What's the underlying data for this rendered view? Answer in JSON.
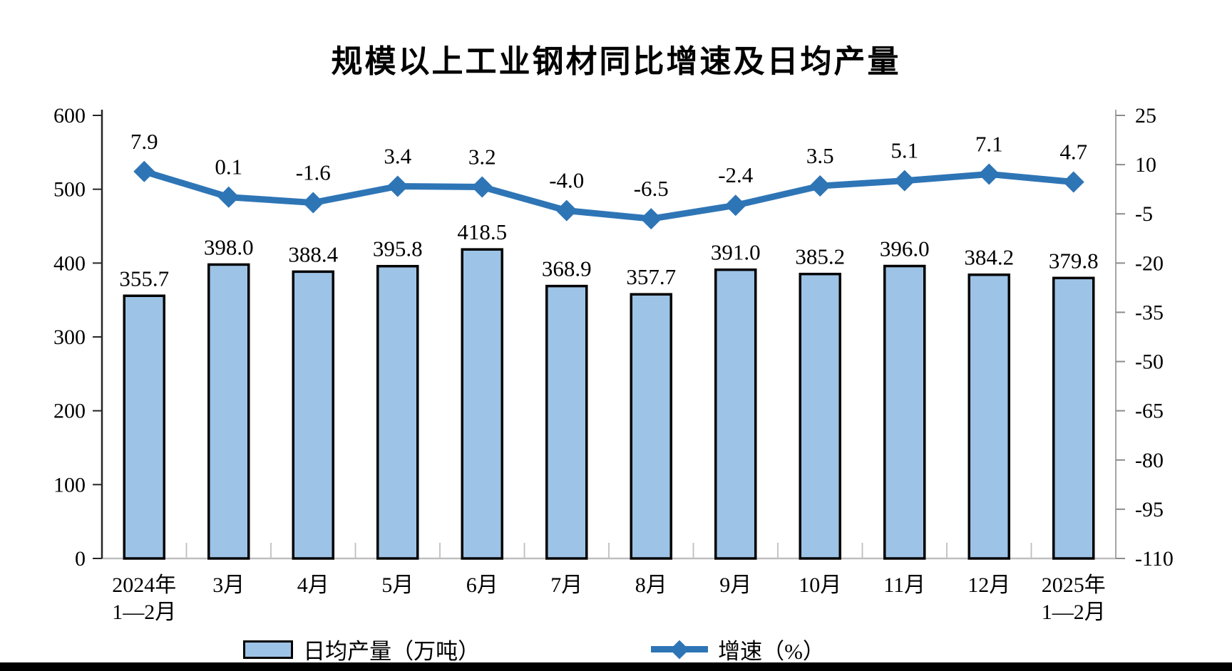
{
  "chart_data": {
    "type": "combo-bar-line",
    "title": "规模以上工业钢材同比增速及日均产量",
    "categories": [
      "2024年\n1—2月",
      "3月",
      "4月",
      "5月",
      "6月",
      "7月",
      "8月",
      "9月",
      "10月",
      "11月",
      "12月",
      "2025年\n1—2月"
    ],
    "series": [
      {
        "name": "日均产量（万吨）",
        "type": "bar",
        "axis": "left",
        "values": [
          355.7,
          398.0,
          388.4,
          395.8,
          418.5,
          368.9,
          357.7,
          391.0,
          385.2,
          396.0,
          384.2,
          379.8
        ],
        "fill": "#9DC3E6",
        "stroke": "#000000"
      },
      {
        "name": "增速（%）",
        "type": "line",
        "axis": "right",
        "values": [
          7.9,
          0.1,
          -1.6,
          3.4,
          3.2,
          -4.0,
          -6.5,
          -2.4,
          3.5,
          5.1,
          7.1,
          4.7
        ],
        "color": "#2E75B6"
      }
    ],
    "left_axis": {
      "min": 0,
      "max": 600,
      "step": 100
    },
    "right_axis": {
      "min": -110,
      "max": 25,
      "step": 15
    },
    "grid": false,
    "legend_position": "bottom"
  }
}
